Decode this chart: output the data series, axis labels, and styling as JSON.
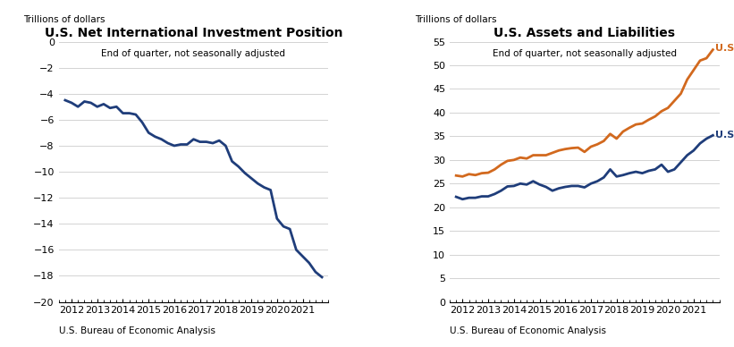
{
  "title1": "U.S. Net International Investment Position",
  "subtitle1": "End of quarter, not seasonally adjusted",
  "ylabel1": "Trillions of dollars",
  "ylim1": [
    -20,
    0
  ],
  "yticks1": [
    0,
    -2,
    -4,
    -6,
    -8,
    -10,
    -12,
    -14,
    -16,
    -18,
    -20
  ],
  "footer1": "U.S. Bureau of Economic Analysis",
  "title2": "U.S. Assets and Liabilities",
  "subtitle2": "End of quarter, not seasonally adjusted",
  "ylabel2": "Trillions of dollars",
  "ylim2": [
    0,
    55
  ],
  "yticks2": [
    0,
    5,
    10,
    15,
    20,
    25,
    30,
    35,
    40,
    45,
    50,
    55
  ],
  "footer2": "U.S. Bureau of Economic Analysis",
  "line_color1": "#1f3d7a",
  "assets_color": "#1f3d7a",
  "liabilities_color": "#d2691e",
  "niip_x": [
    2011.75,
    2012.0,
    2012.25,
    2012.5,
    2012.75,
    2013.0,
    2013.25,
    2013.5,
    2013.75,
    2014.0,
    2014.25,
    2014.5,
    2014.75,
    2015.0,
    2015.25,
    2015.5,
    2015.75,
    2016.0,
    2016.25,
    2016.5,
    2016.75,
    2017.0,
    2017.25,
    2017.5,
    2017.75,
    2018.0,
    2018.25,
    2018.5,
    2018.75,
    2019.0,
    2019.25,
    2019.5,
    2019.75,
    2020.0,
    2020.25,
    2020.5,
    2020.75,
    2021.0,
    2021.25,
    2021.5,
    2021.75
  ],
  "niip_y": [
    -4.5,
    -4.7,
    -5.0,
    -4.6,
    -4.7,
    -5.0,
    -4.8,
    -5.1,
    -5.0,
    -5.5,
    -5.5,
    -5.6,
    -6.2,
    -7.0,
    -7.3,
    -7.5,
    -7.8,
    -8.0,
    -7.9,
    -7.9,
    -7.5,
    -7.7,
    -7.7,
    -7.8,
    -7.6,
    -8.0,
    -9.2,
    -9.6,
    -10.1,
    -10.5,
    -10.9,
    -11.2,
    -11.4,
    -13.6,
    -14.2,
    -14.4,
    -16.0,
    -16.5,
    -17.0,
    -17.7,
    -18.1
  ],
  "assets_x": [
    2011.75,
    2012.0,
    2012.25,
    2012.5,
    2012.75,
    2013.0,
    2013.25,
    2013.5,
    2013.75,
    2014.0,
    2014.25,
    2014.5,
    2014.75,
    2015.0,
    2015.25,
    2015.5,
    2015.75,
    2016.0,
    2016.25,
    2016.5,
    2016.75,
    2017.0,
    2017.25,
    2017.5,
    2017.75,
    2018.0,
    2018.25,
    2018.5,
    2018.75,
    2019.0,
    2019.25,
    2019.5,
    2019.75,
    2020.0,
    2020.25,
    2020.5,
    2020.75,
    2021.0,
    2021.25,
    2021.5,
    2021.75
  ],
  "assets_y": [
    22.2,
    21.7,
    22.0,
    22.0,
    22.3,
    22.3,
    22.8,
    23.5,
    24.4,
    24.5,
    25.0,
    24.8,
    25.5,
    24.8,
    24.3,
    23.5,
    24.0,
    24.3,
    24.5,
    24.5,
    24.2,
    25.0,
    25.5,
    26.3,
    28.0,
    26.5,
    26.8,
    27.2,
    27.5,
    27.2,
    27.7,
    28.0,
    29.0,
    27.5,
    28.0,
    29.5,
    31.0,
    32.0,
    33.5,
    34.5,
    35.2
  ],
  "liabilities_x": [
    2011.75,
    2012.0,
    2012.25,
    2012.5,
    2012.75,
    2013.0,
    2013.25,
    2013.5,
    2013.75,
    2014.0,
    2014.25,
    2014.5,
    2014.75,
    2015.0,
    2015.25,
    2015.5,
    2015.75,
    2016.0,
    2016.25,
    2016.5,
    2016.75,
    2017.0,
    2017.25,
    2017.5,
    2017.75,
    2018.0,
    2018.25,
    2018.5,
    2018.75,
    2019.0,
    2019.25,
    2019.5,
    2019.75,
    2020.0,
    2020.25,
    2020.5,
    2020.75,
    2021.0,
    2021.25,
    2021.5,
    2021.75
  ],
  "liabilities_y": [
    26.7,
    26.5,
    27.0,
    26.8,
    27.2,
    27.3,
    28.0,
    29.0,
    29.8,
    30.0,
    30.5,
    30.3,
    31.0,
    31.0,
    31.0,
    31.5,
    32.0,
    32.3,
    32.5,
    32.6,
    31.7,
    32.8,
    33.3,
    34.0,
    35.5,
    34.5,
    36.0,
    36.8,
    37.5,
    37.7,
    38.5,
    39.2,
    40.3,
    41.0,
    42.5,
    44.0,
    47.0,
    49.0,
    51.0,
    51.5,
    53.3
  ],
  "xtick_years": [
    2012,
    2013,
    2014,
    2015,
    2016,
    2017,
    2018,
    2019,
    2020,
    2021
  ]
}
